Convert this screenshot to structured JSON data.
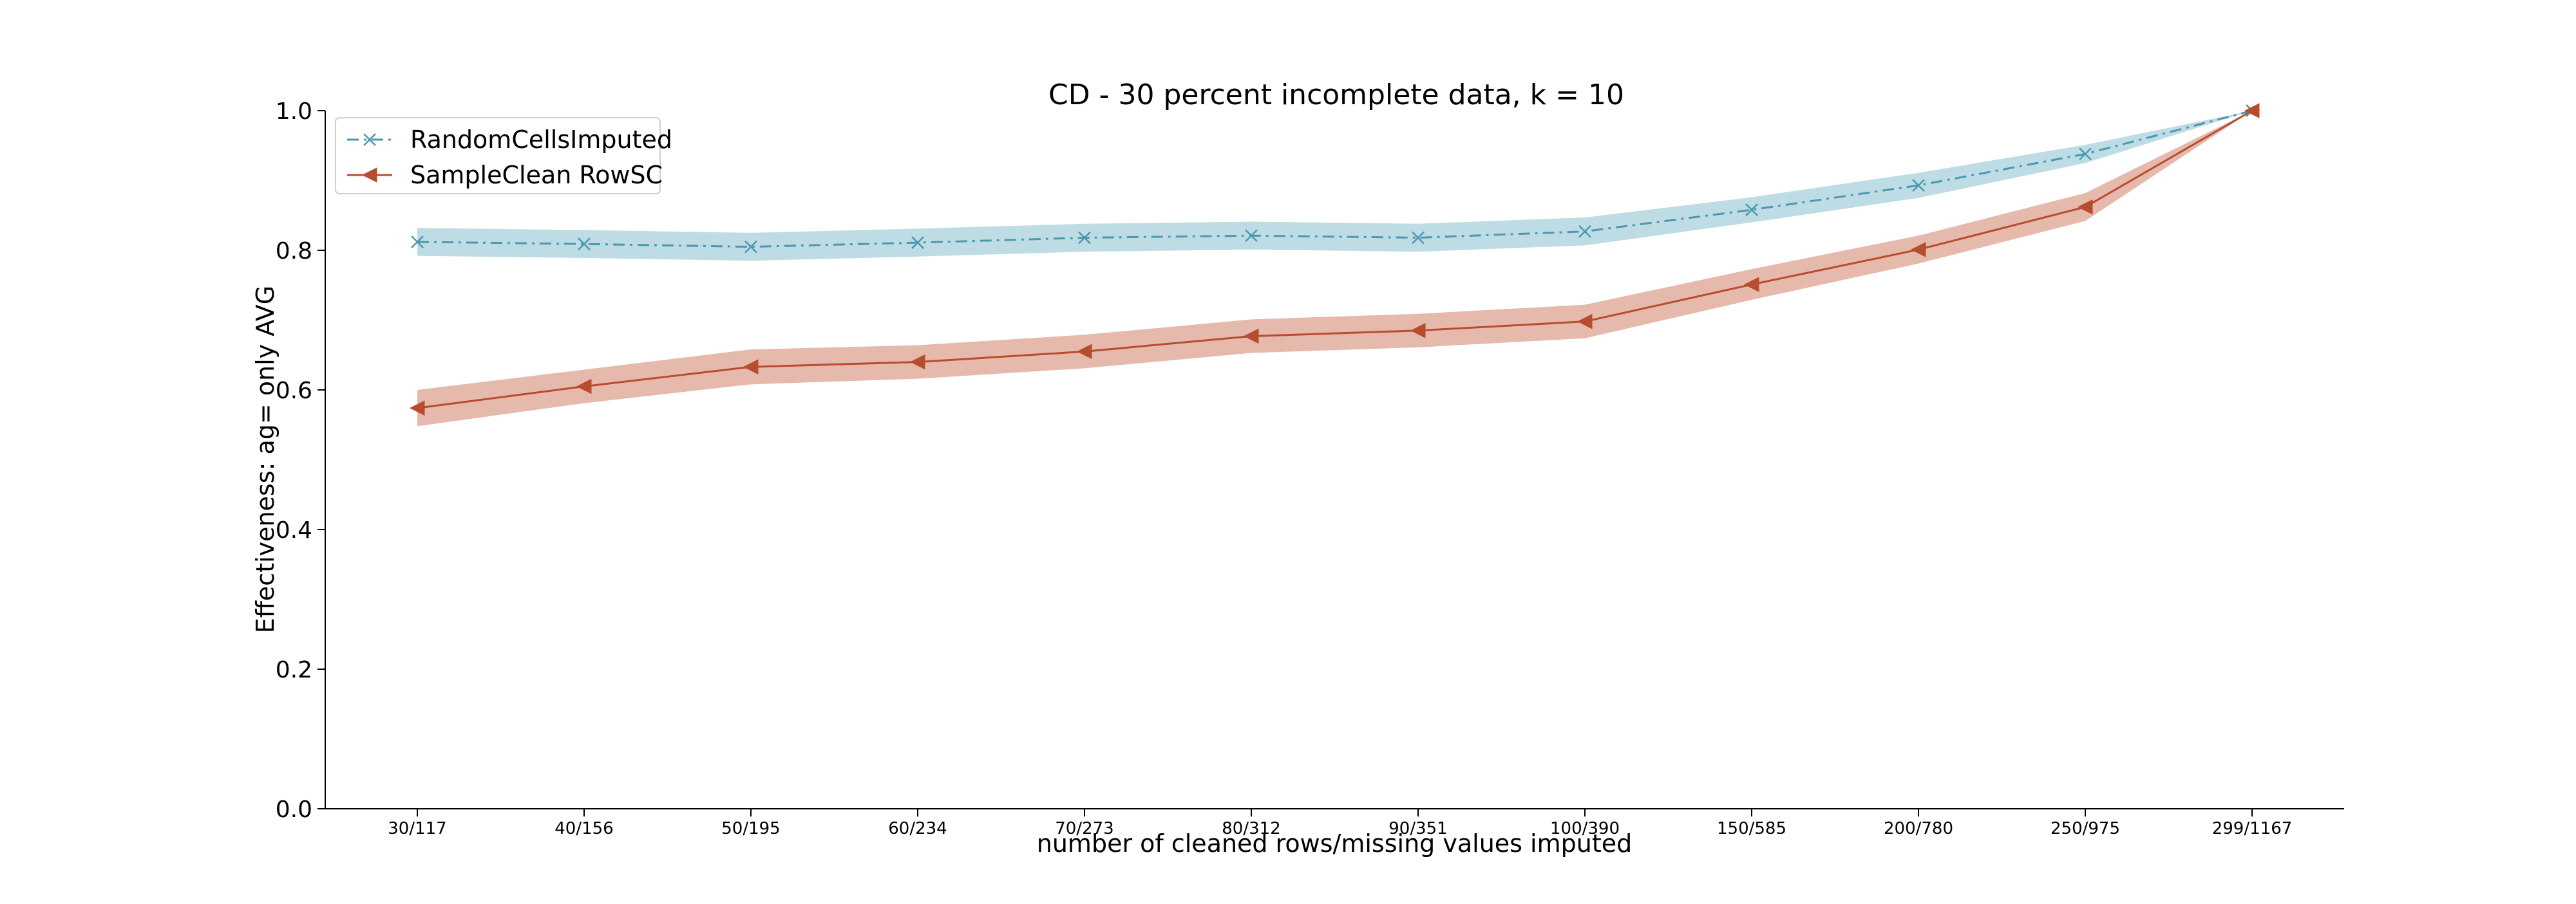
{
  "chart_data": {
    "type": "line",
    "title": "CD - 30 percent incomplete data, k = 10",
    "xlabel": "number of cleaned rows/missing values imputed",
    "ylabel": "Effectiveness: ag= only AVG",
    "ylim": [
      0.0,
      1.0
    ],
    "yticks": [
      "0.0",
      "0.2",
      "0.4",
      "0.6",
      "0.8",
      "1.0"
    ],
    "categories": [
      "30/117",
      "40/156",
      "50/195",
      "60/234",
      "70/273",
      "80/312",
      "90/351",
      "100/390",
      "150/585",
      "200/780",
      "250/975",
      "299/1167"
    ],
    "grid": false,
    "legend_position": "upper-left",
    "series": [
      {
        "name": "RandomCellsImputed",
        "color": "#4a98b0",
        "band_color": "#a8d0db",
        "line_style": "dash-dot",
        "marker": "x",
        "values": [
          0.812,
          0.809,
          0.805,
          0.811,
          0.818,
          0.821,
          0.818,
          0.827,
          0.858,
          0.893,
          0.938,
          1.0
        ],
        "lower": [
          0.792,
          0.789,
          0.785,
          0.791,
          0.798,
          0.801,
          0.798,
          0.807,
          0.84,
          0.875,
          0.925,
          1.0
        ],
        "upper": [
          0.832,
          0.829,
          0.825,
          0.831,
          0.838,
          0.841,
          0.838,
          0.847,
          0.876,
          0.911,
          0.951,
          1.0
        ]
      },
      {
        "name": "SampleClean RowSC",
        "color": "#b84c2e",
        "band_color": "#dca290",
        "line_style": "solid",
        "marker": "triangle-left",
        "values": [
          0.574,
          0.605,
          0.633,
          0.64,
          0.655,
          0.677,
          0.685,
          0.698,
          0.751,
          0.801,
          0.862,
          1.0
        ],
        "lower": [
          0.548,
          0.581,
          0.608,
          0.616,
          0.631,
          0.653,
          0.661,
          0.674,
          0.729,
          0.781,
          0.842,
          1.0
        ],
        "upper": [
          0.6,
          0.629,
          0.658,
          0.664,
          0.679,
          0.701,
          0.709,
          0.722,
          0.773,
          0.821,
          0.882,
          1.0
        ]
      }
    ]
  }
}
